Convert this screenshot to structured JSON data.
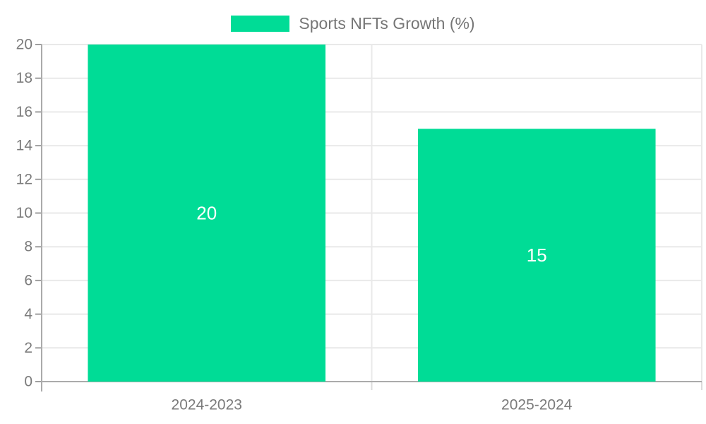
{
  "legend": {
    "label": "Sports NFTs Growth (%)"
  },
  "colors": {
    "bar": "#00DC96",
    "grid": "#e9e9e9",
    "axis": "#ababab",
    "tick": "#9e9e9e",
    "boundary_tick": "#dcdcdc",
    "text": "#7b7b7b",
    "bar_label": "#ffffff",
    "legend_text": "#767676",
    "background": "#ffffff"
  },
  "chart_data": {
    "type": "bar",
    "title": "",
    "categories": [
      "2024-2023",
      "2025-2024"
    ],
    "series": [
      {
        "name": "Sports NFTs Growth (%)",
        "color": "#00DC96",
        "values": [
          20,
          15
        ]
      }
    ],
    "data_labels": [
      "20",
      "15"
    ],
    "xlabel": "",
    "ylabel": "",
    "ylim": [
      0,
      20
    ],
    "ytick_step": 2,
    "yticks": [
      0,
      2,
      4,
      6,
      8,
      10,
      12,
      14,
      16,
      18,
      20
    ],
    "grid": true,
    "legend_position": "top-center"
  }
}
